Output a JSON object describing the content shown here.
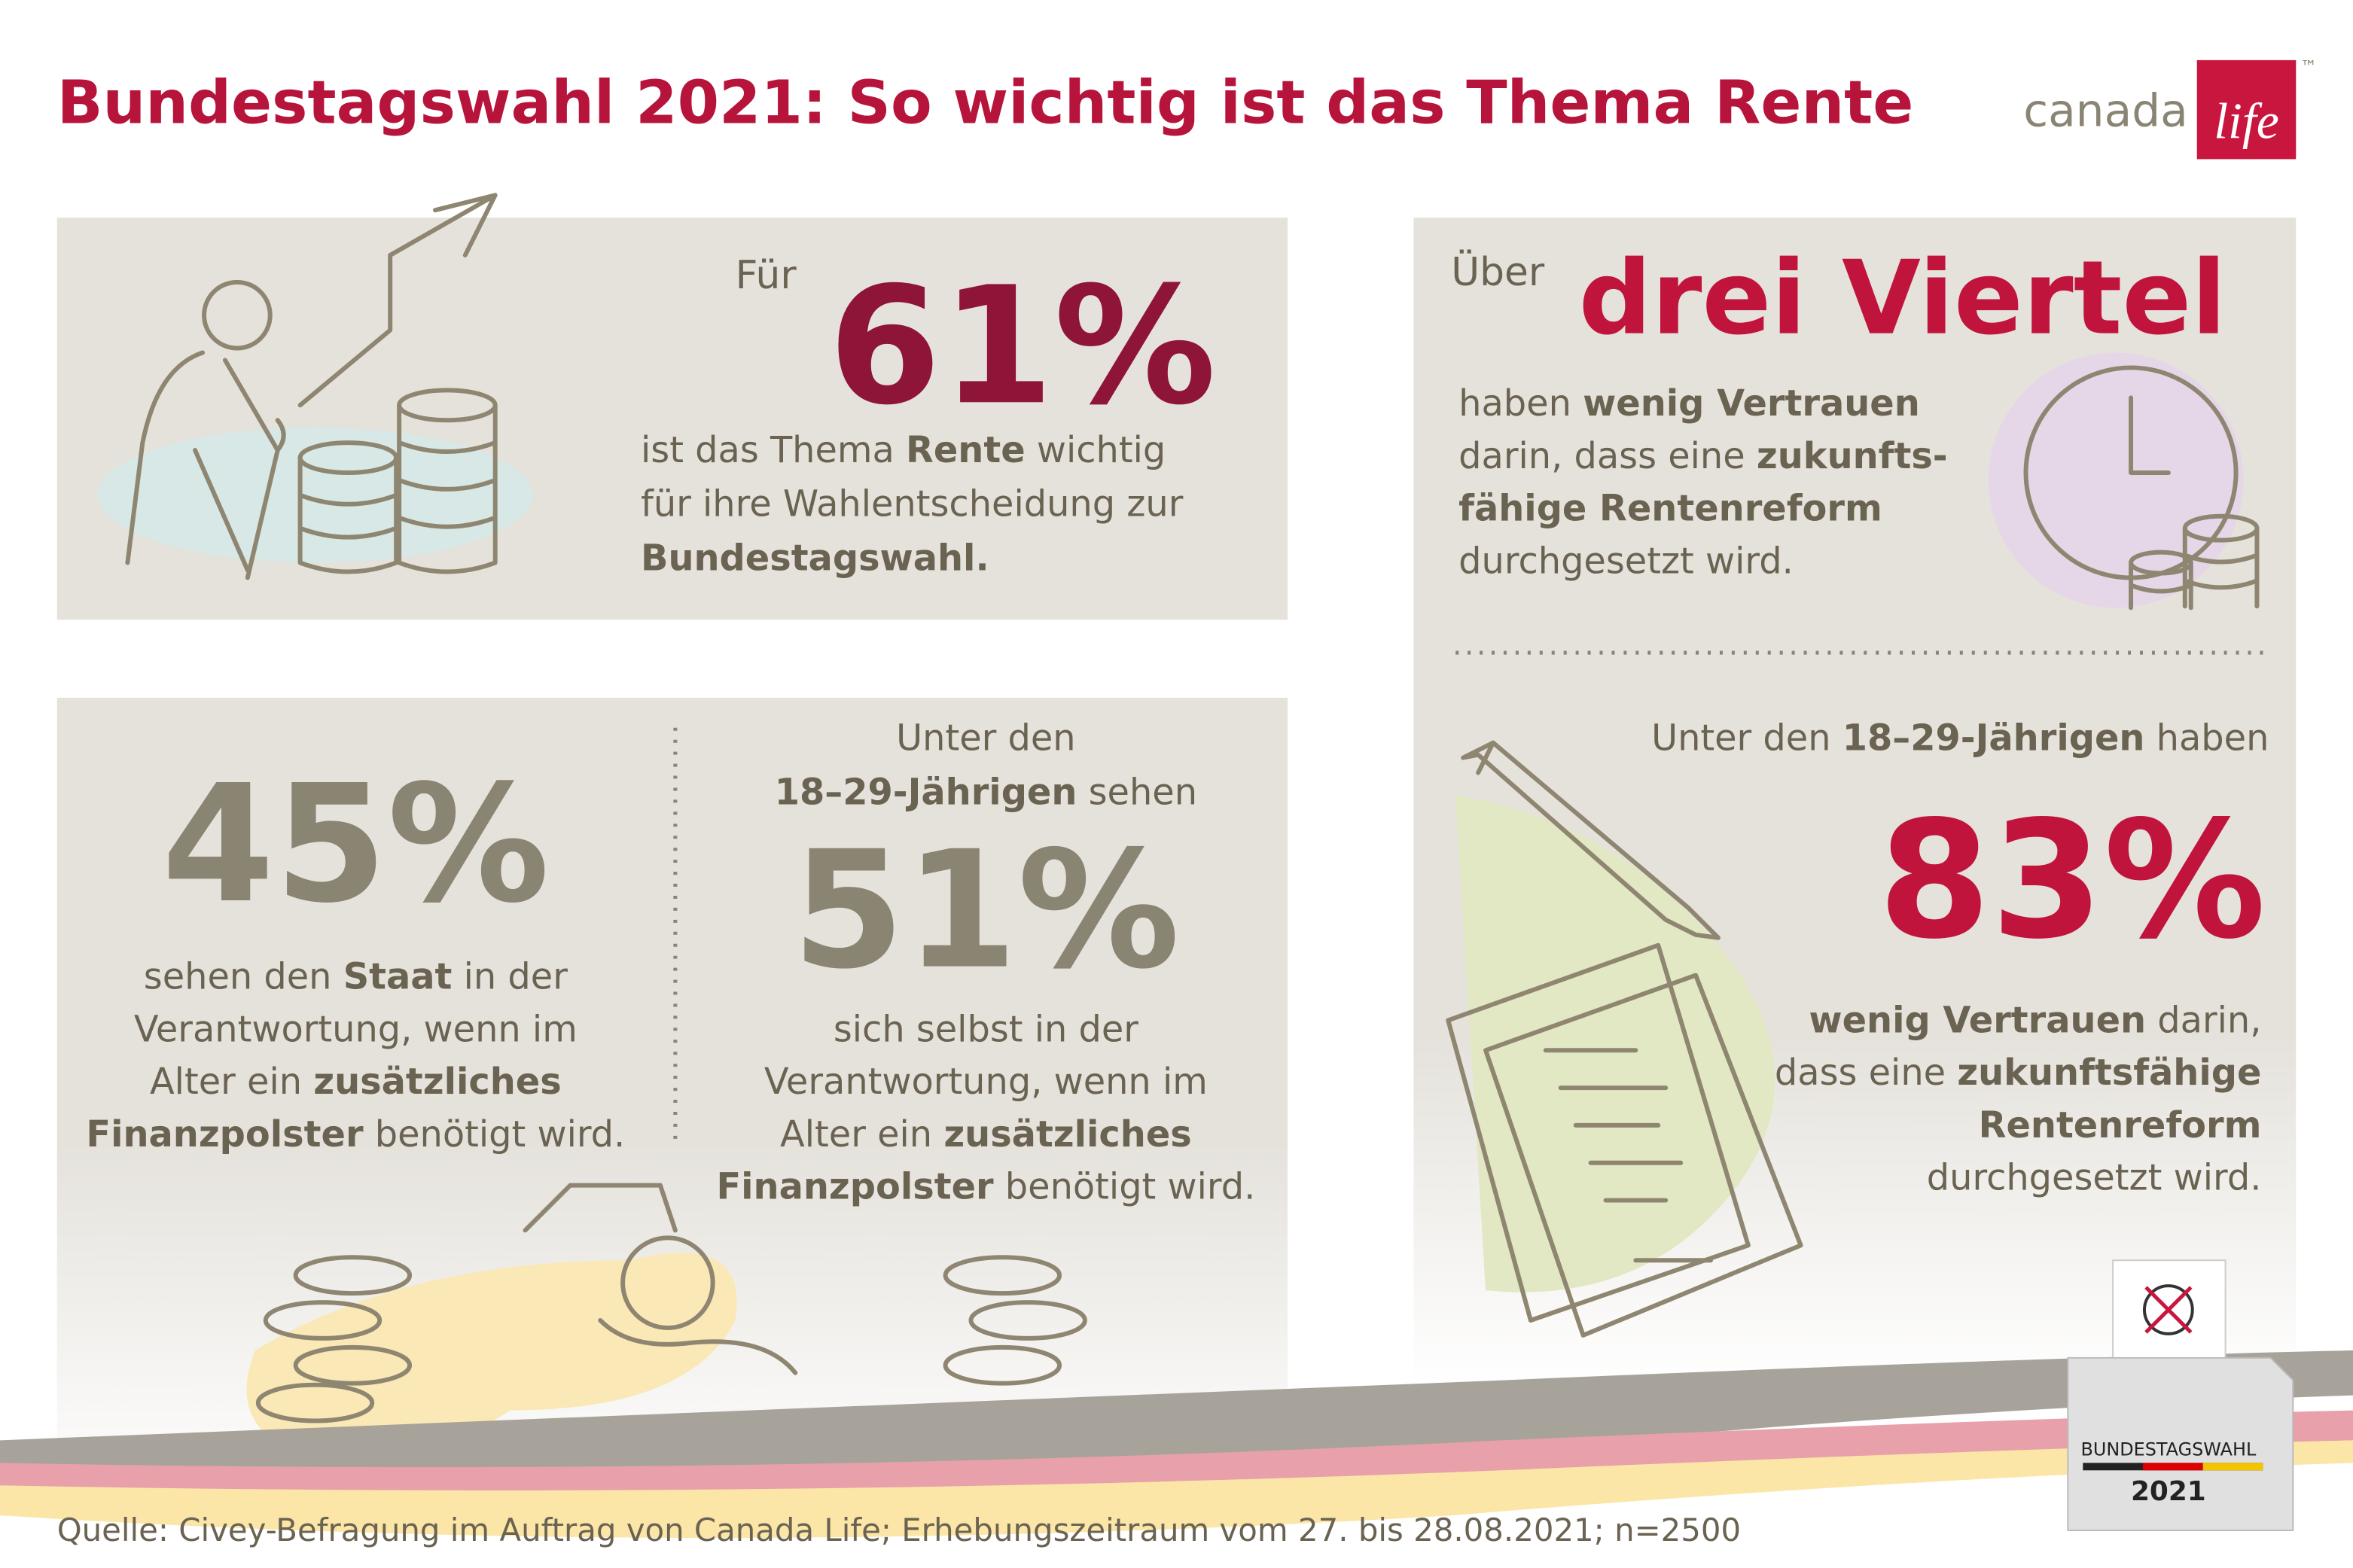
{
  "header": {
    "title": "Bundestagswahl 2021: So wichtig ist das Thema Rente",
    "logo": {
      "brand": "canada",
      "accent": "life",
      "trademark": "™"
    }
  },
  "panels": [
    {
      "intro": "Für",
      "highlight": "61%",
      "lines": [
        [
          {
            "text": "ist das Thema ",
            "bold": false
          },
          {
            "text": "Rente",
            "bold": true
          },
          {
            "text": " wichtig",
            "bold": false
          }
        ],
        [
          {
            "text": "für ihre Wahlentscheidung zur",
            "bold": false
          }
        ],
        [
          {
            "text": "Bundestagswahl.",
            "bold": true
          }
        ]
      ]
    },
    {
      "intro": "Über",
      "highlight": "drei Viertel",
      "lines": [
        [
          {
            "text": "haben ",
            "bold": false
          },
          {
            "text": "wenig Vertrauen",
            "bold": true
          }
        ],
        [
          {
            "text": "darin, dass eine ",
            "bold": false
          },
          {
            "text": "zukunfts-",
            "bold": true
          }
        ],
        [
          {
            "text": "fähige Rentenreform",
            "bold": true
          }
        ],
        [
          {
            "text": "durchgesetzt wird.",
            "bold": false
          }
        ]
      ]
    },
    {
      "highlight": "45%",
      "lines": [
        [
          {
            "text": "sehen den ",
            "bold": false
          },
          {
            "text": "Staat",
            "bold": true
          },
          {
            "text": " in der",
            "bold": false
          }
        ],
        [
          {
            "text": "Verantwortung, wenn im",
            "bold": false
          }
        ],
        [
          {
            "text": "Alter ein ",
            "bold": false
          },
          {
            "text": "zusätzliches",
            "bold": true
          }
        ],
        [
          {
            "text": "Finanzpolster",
            "bold": true
          },
          {
            "text": " benötigt wird.",
            "bold": false
          }
        ]
      ]
    },
    {
      "intro_lines": [
        [
          {
            "text": "Unter den",
            "bold": false
          }
        ],
        [
          {
            "text": "18–29-Jährigen",
            "bold": true
          },
          {
            "text": " sehen",
            "bold": false
          }
        ]
      ],
      "highlight": "51%",
      "lines": [
        [
          {
            "text": "sich selbst in der",
            "bold": false
          }
        ],
        [
          {
            "text": "Verantwortung, wenn im",
            "bold": false
          }
        ],
        [
          {
            "text": "Alter ein ",
            "bold": false
          },
          {
            "text": "zusätzliches",
            "bold": true
          }
        ],
        [
          {
            "text": "Finanzpolster",
            "bold": true
          },
          {
            "text": " benötigt wird.",
            "bold": false
          }
        ]
      ]
    },
    {
      "intro_lines": [
        [
          {
            "text": "Unter den ",
            "bold": false
          },
          {
            "text": "18–29-Jährigen",
            "bold": true
          },
          {
            "text": " haben",
            "bold": false
          }
        ]
      ],
      "highlight": "83%",
      "lines": [
        [
          {
            "text": "wenig Vertrauen",
            "bold": true
          },
          {
            "text": " darin,",
            "bold": false
          }
        ],
        [
          {
            "text": "dass eine ",
            "bold": false
          },
          {
            "text": "zukunftsfähige",
            "bold": true
          }
        ],
        [
          {
            "text": "Rentenreform",
            "bold": true
          }
        ],
        [
          {
            "text": "durchgesetzt wird.",
            "bold": false
          }
        ]
      ]
    }
  ],
  "ballot_box": {
    "label": "BUNDESTAGSWAHL",
    "year": "2021"
  },
  "footer": {
    "source": "Quelle: Civey-Befragung im Auftrag von Canada Life; Erhebungszeitraum vom 27. bis 28.08.2021; n=2500"
  }
}
